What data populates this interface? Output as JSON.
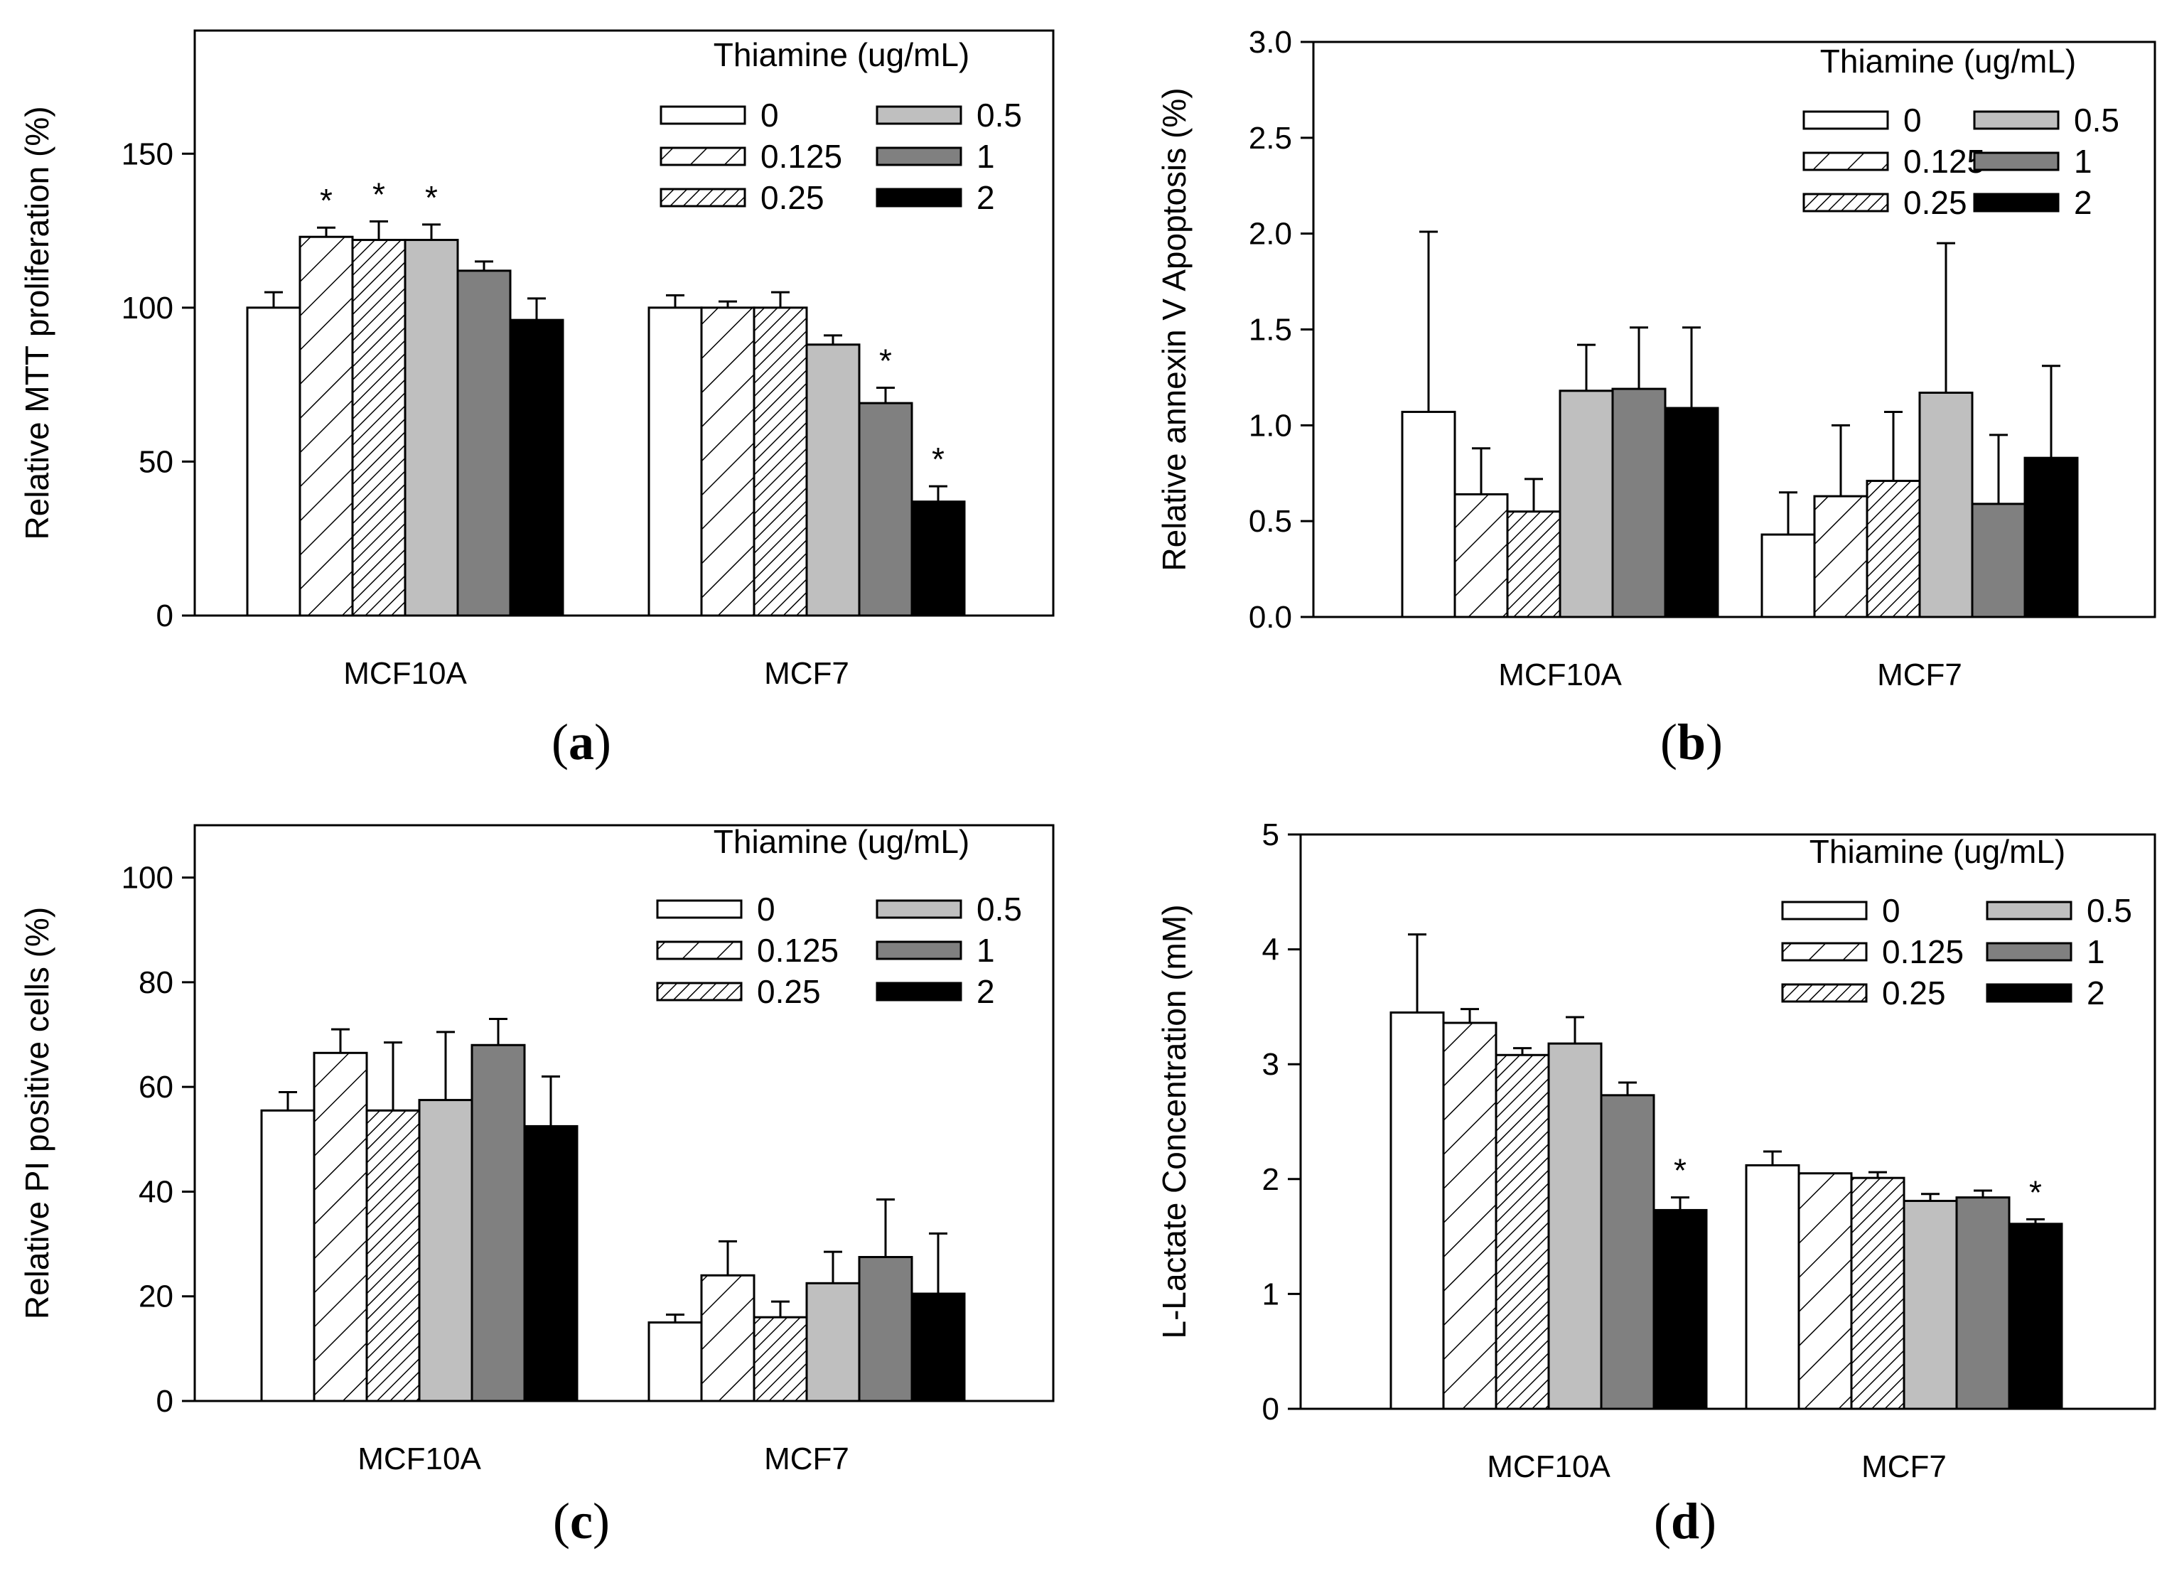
{
  "legend": {
    "title": "Thiamine (ug/mL)",
    "entries": [
      "0",
      "0.125",
      "0.25",
      "0.5",
      "1",
      "2"
    ]
  },
  "groups": [
    "MCF10A",
    "MCF7"
  ],
  "chart_data": [
    {
      "type": "bar",
      "panel": "(a)",
      "ylabel": "Relative MTT proliferation (%)",
      "ylim": [
        0,
        190
      ],
      "yticks": [
        0,
        50,
        100,
        150
      ],
      "yticks_labels": [
        "0",
        "50",
        "100",
        "150"
      ],
      "categories": [
        "MCF10A",
        "MCF7"
      ],
      "series": [
        {
          "name": "0",
          "values": [
            100,
            100
          ],
          "errors": [
            5,
            4
          ],
          "sig": [
            false,
            false
          ]
        },
        {
          "name": "0.125",
          "values": [
            123,
            100
          ],
          "errors": [
            3,
            2
          ],
          "sig": [
            true,
            false
          ]
        },
        {
          "name": "0.25",
          "values": [
            122,
            100
          ],
          "errors": [
            6,
            5
          ],
          "sig": [
            true,
            false
          ]
        },
        {
          "name": "0.5",
          "values": [
            122,
            88
          ],
          "errors": [
            5,
            3
          ],
          "sig": [
            true,
            false
          ]
        },
        {
          "name": "1",
          "values": [
            112,
            69
          ],
          "errors": [
            3,
            5
          ],
          "sig": [
            false,
            true
          ]
        },
        {
          "name": "2",
          "values": [
            96,
            37
          ],
          "errors": [
            7,
            5
          ],
          "sig": [
            false,
            true
          ]
        }
      ]
    },
    {
      "type": "bar",
      "panel": "(b)",
      "ylabel": "Relative annexin V Apoptosis (%)",
      "ylim": [
        0,
        3.0
      ],
      "yticks": [
        0,
        0.5,
        1.0,
        1.5,
        2.0,
        2.5,
        3.0
      ],
      "yticks_labels": [
        "0.0",
        "0.5",
        "1.0",
        "1.5",
        "2.0",
        "2.5",
        "3.0"
      ],
      "categories": [
        "MCF10A",
        "MCF7"
      ],
      "series": [
        {
          "name": "0",
          "values": [
            1.07,
            0.43
          ],
          "errors": [
            0.94,
            0.22
          ],
          "sig": [
            false,
            false
          ]
        },
        {
          "name": "0.125",
          "values": [
            0.64,
            0.63
          ],
          "errors": [
            0.24,
            0.37
          ],
          "sig": [
            false,
            false
          ]
        },
        {
          "name": "0.25",
          "values": [
            0.55,
            0.71
          ],
          "errors": [
            0.17,
            0.36
          ],
          "sig": [
            false,
            false
          ]
        },
        {
          "name": "0.5",
          "values": [
            1.18,
            1.17
          ],
          "errors": [
            0.24,
            0.78
          ],
          "sig": [
            false,
            false
          ]
        },
        {
          "name": "1",
          "values": [
            1.19,
            0.59
          ],
          "errors": [
            0.32,
            0.36
          ],
          "sig": [
            false,
            false
          ]
        },
        {
          "name": "2",
          "values": [
            1.09,
            0.83
          ],
          "errors": [
            0.42,
            0.48
          ],
          "sig": [
            false,
            false
          ]
        }
      ]
    },
    {
      "type": "bar",
      "panel": "(c)",
      "ylabel": "Relative PI positive cells (%)",
      "ylim": [
        0,
        110
      ],
      "yticks": [
        0,
        20,
        40,
        60,
        80,
        100
      ],
      "yticks_labels": [
        "0",
        "20",
        "40",
        "60",
        "80",
        "100"
      ],
      "categories": [
        "MCF10A",
        "MCF7"
      ],
      "series": [
        {
          "name": "0",
          "values": [
            55.5,
            15
          ],
          "errors": [
            3.5,
            1.5
          ],
          "sig": [
            false,
            false
          ]
        },
        {
          "name": "0.125",
          "values": [
            66.5,
            24
          ],
          "errors": [
            4.5,
            6.5
          ],
          "sig": [
            false,
            false
          ]
        },
        {
          "name": "0.25",
          "values": [
            55.5,
            16
          ],
          "errors": [
            13,
            3
          ],
          "sig": [
            false,
            false
          ]
        },
        {
          "name": "0.5",
          "values": [
            57.5,
            22.5
          ],
          "errors": [
            13,
            6
          ],
          "sig": [
            false,
            false
          ]
        },
        {
          "name": "1",
          "values": [
            68,
            27.5
          ],
          "errors": [
            5,
            11
          ],
          "sig": [
            false,
            false
          ]
        },
        {
          "name": "2",
          "values": [
            52.5,
            20.5
          ],
          "errors": [
            9.5,
            11.5
          ],
          "sig": [
            false,
            false
          ]
        }
      ]
    },
    {
      "type": "bar",
      "panel": "(d)",
      "ylabel": "L-Lactate Concentration (mM)",
      "ylim": [
        0,
        5
      ],
      "yticks": [
        0,
        1,
        2,
        3,
        4,
        5
      ],
      "yticks_labels": [
        "0",
        "1",
        "2",
        "3",
        "4",
        "5"
      ],
      "categories": [
        "MCF10A",
        "MCF7"
      ],
      "series": [
        {
          "name": "0",
          "values": [
            3.45,
            2.12
          ],
          "errors": [
            0.68,
            0.12
          ],
          "sig": [
            false,
            false
          ]
        },
        {
          "name": "0.125",
          "values": [
            3.36,
            2.05
          ],
          "errors": [
            0.12,
            0
          ],
          "sig": [
            false,
            false
          ]
        },
        {
          "name": "0.25",
          "values": [
            3.08,
            2.01
          ],
          "errors": [
            0.06,
            0.05
          ],
          "sig": [
            false,
            false
          ]
        },
        {
          "name": "0.5",
          "values": [
            3.18,
            1.81
          ],
          "errors": [
            0.23,
            0.06
          ],
          "sig": [
            false,
            false
          ]
        },
        {
          "name": "1",
          "values": [
            2.73,
            1.84
          ],
          "errors": [
            0.11,
            0.06
          ],
          "sig": [
            false,
            false
          ]
        },
        {
          "name": "2",
          "values": [
            1.73,
            1.61
          ],
          "errors": [
            0.11,
            0.04
          ],
          "sig": [
            true,
            true
          ]
        }
      ]
    }
  ],
  "sig_marker": "*",
  "colors": {
    "s0": "#ffffff",
    "s0.5": "#bfbfbf",
    "s1": "#808080",
    "s2": "#000000",
    "stroke": "#000000"
  }
}
